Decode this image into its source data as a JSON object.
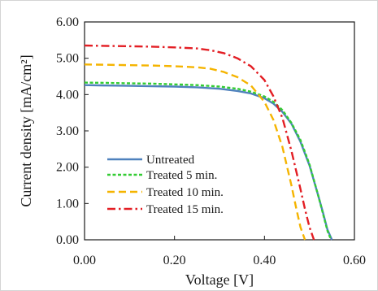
{
  "chart_data": {
    "type": "line",
    "xlabel": "Voltage [V]",
    "ylabel": "Current density  [mA/cm²]",
    "xlim": [
      0,
      0.6
    ],
    "ylim": [
      0,
      6
    ],
    "xticks": [
      "0.00",
      "0.20",
      "0.40",
      "0.60"
    ],
    "yticks": [
      "0.00",
      "1.00",
      "2.00",
      "3.00",
      "4.00",
      "5.00",
      "6.00"
    ],
    "grid": false,
    "legend_position": "bottom-left",
    "series": [
      {
        "name": "Untreated",
        "color": "#4f81bd",
        "dash": "solid",
        "x": [
          0,
          0.05,
          0.1,
          0.15,
          0.2,
          0.25,
          0.3,
          0.34,
          0.37,
          0.4,
          0.42,
          0.44,
          0.46,
          0.48,
          0.5,
          0.52,
          0.53,
          0.54,
          0.55
        ],
        "y": [
          4.26,
          4.25,
          4.24,
          4.23,
          4.22,
          4.2,
          4.16,
          4.1,
          4.03,
          3.9,
          3.75,
          3.52,
          3.2,
          2.7,
          2.05,
          1.2,
          0.75,
          0.28,
          0.0
        ]
      },
      {
        "name": "Treated 5 min.",
        "color": "#33cc33",
        "dash": "dotted",
        "x": [
          0,
          0.05,
          0.1,
          0.15,
          0.2,
          0.25,
          0.3,
          0.34,
          0.37,
          0.4,
          0.42,
          0.44,
          0.46,
          0.48,
          0.5,
          0.52,
          0.53,
          0.54,
          0.548
        ],
        "y": [
          4.33,
          4.32,
          4.31,
          4.3,
          4.28,
          4.26,
          4.22,
          4.16,
          4.08,
          3.95,
          3.8,
          3.57,
          3.22,
          2.75,
          2.08,
          1.2,
          0.72,
          0.25,
          0.0
        ]
      },
      {
        "name": "Treated 10 min.",
        "color": "#f5b400",
        "dash": "dashed",
        "x": [
          0,
          0.05,
          0.1,
          0.15,
          0.2,
          0.25,
          0.28,
          0.31,
          0.34,
          0.37,
          0.4,
          0.42,
          0.44,
          0.46,
          0.47,
          0.48,
          0.49
        ],
        "y": [
          4.83,
          4.82,
          4.81,
          4.8,
          4.78,
          4.75,
          4.71,
          4.62,
          4.48,
          4.25,
          3.8,
          3.3,
          2.55,
          1.5,
          0.9,
          0.35,
          0.0
        ]
      },
      {
        "name": "Treated 15 min.",
        "color": "#e31e24",
        "dash": "dashdot",
        "x": [
          0,
          0.05,
          0.1,
          0.15,
          0.2,
          0.25,
          0.28,
          0.31,
          0.34,
          0.37,
          0.4,
          0.42,
          0.44,
          0.46,
          0.48,
          0.49,
          0.5,
          0.51
        ],
        "y": [
          5.35,
          5.34,
          5.33,
          5.32,
          5.3,
          5.27,
          5.22,
          5.14,
          5.0,
          4.78,
          4.4,
          3.95,
          3.35,
          2.45,
          1.4,
          0.85,
          0.35,
          0.0
        ]
      }
    ]
  }
}
